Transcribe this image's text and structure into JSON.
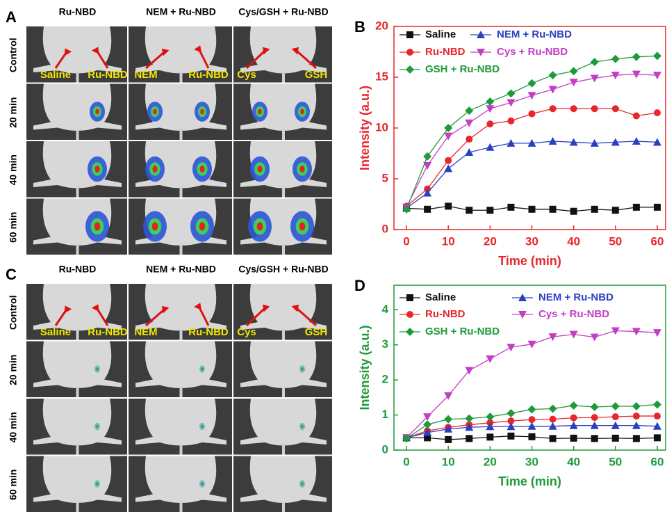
{
  "panels": [
    {
      "panel_label": "A",
      "columns": [
        "Ru-NBD",
        "NEM + Ru-NBD",
        "Cys/GSH + Ru-NBD"
      ],
      "rows": [
        "Control",
        "20 min",
        "40 min",
        "60 min"
      ],
      "annotations": [
        "Saline",
        "Ru-NBD",
        "NEM",
        "Ru-NBD",
        "Cys",
        "GSH"
      ]
    },
    {
      "panel_label": "C",
      "columns": [
        "Ru-NBD",
        "NEM + Ru-NBD",
        "Cys/GSH + Ru-NBD"
      ],
      "rows": [
        "Control",
        "20 min",
        "40 min",
        "60 min"
      ],
      "annotations": [
        "Saline",
        "Ru-NBD",
        "NEM",
        "Ru-NBD",
        "Cys",
        "GSH"
      ]
    }
  ],
  "chart_data": [
    {
      "type": "line",
      "panel_label": "B",
      "x_label": "Time (min)",
      "y_label": "Intensity (a.u.)",
      "axis_color": "#e8262b",
      "x": [
        0,
        5,
        10,
        15,
        20,
        25,
        30,
        35,
        40,
        45,
        50,
        55,
        60
      ],
      "xlim": [
        -3,
        62
      ],
      "xticks": [
        0,
        10,
        20,
        30,
        40,
        50,
        60
      ],
      "ylim": [
        0,
        20
      ],
      "yticks": [
        0,
        5,
        10,
        15,
        20
      ],
      "series": [
        {
          "name": "Saline",
          "color": "#111111",
          "marker": "square",
          "values": [
            2.1,
            2.0,
            2.3,
            1.9,
            1.9,
            2.2,
            2.0,
            2.0,
            1.8,
            2.0,
            1.9,
            2.2,
            2.2
          ]
        },
        {
          "name": "Ru-NBD",
          "color": "#e8262b",
          "marker": "circle",
          "values": [
            2.3,
            4.0,
            6.8,
            8.9,
            10.4,
            10.7,
            11.4,
            11.9,
            11.9,
            11.9,
            11.9,
            11.2,
            11.5
          ]
        },
        {
          "name": "NEM + Ru-NBD",
          "color": "#2b3fbf",
          "marker": "triangle",
          "values": [
            2.1,
            3.6,
            6.0,
            7.6,
            8.1,
            8.5,
            8.5,
            8.7,
            8.6,
            8.5,
            8.6,
            8.7,
            8.6
          ]
        },
        {
          "name": "Cys + Ru-NBD",
          "color": "#c23fc2",
          "marker": "triangle-down",
          "values": [
            2.2,
            6.3,
            9.2,
            10.5,
            11.9,
            12.5,
            13.2,
            13.8,
            14.5,
            14.9,
            15.2,
            15.3,
            15.2
          ]
        },
        {
          "name": "GSH + Ru-NBD",
          "color": "#1f9a3a",
          "marker": "diamond",
          "values": [
            2.0,
            7.2,
            10.0,
            11.7,
            12.6,
            13.4,
            14.4,
            15.2,
            15.6,
            16.5,
            16.8,
            17.0,
            17.1
          ]
        }
      ]
    },
    {
      "type": "line",
      "panel_label": "D",
      "x_label": "Time (min)",
      "y_label": "Intensity (a.u.)",
      "axis_color": "#1f9a3a",
      "x": [
        0,
        5,
        10,
        15,
        20,
        25,
        30,
        35,
        40,
        45,
        50,
        55,
        60
      ],
      "xlim": [
        -3,
        62
      ],
      "xticks": [
        0,
        10,
        20,
        30,
        40,
        50,
        60
      ],
      "ylim": [
        0,
        4.7
      ],
      "yticks": [
        0,
        1,
        2,
        3,
        4
      ],
      "series": [
        {
          "name": "Saline",
          "color": "#111111",
          "marker": "square",
          "values": [
            0.35,
            0.35,
            0.3,
            0.33,
            0.37,
            0.4,
            0.38,
            0.33,
            0.34,
            0.33,
            0.34,
            0.33,
            0.35
          ]
        },
        {
          "name": "Ru-NBD",
          "color": "#e8262b",
          "marker": "circle",
          "values": [
            0.35,
            0.55,
            0.65,
            0.72,
            0.78,
            0.83,
            0.87,
            0.88,
            0.92,
            0.93,
            0.95,
            0.97,
            0.97
          ]
        },
        {
          "name": "NEM + Ru-NBD",
          "color": "#2b3fbf",
          "marker": "triangle",
          "values": [
            0.35,
            0.5,
            0.6,
            0.65,
            0.67,
            0.67,
            0.68,
            0.68,
            0.7,
            0.7,
            0.7,
            0.7,
            0.68
          ]
        },
        {
          "name": "Cys + Ru-NBD",
          "color": "#c23fc2",
          "marker": "triangle-down",
          "values": [
            0.35,
            0.95,
            1.55,
            2.27,
            2.6,
            2.93,
            3.02,
            3.23,
            3.3,
            3.22,
            3.4,
            3.38,
            3.35
          ]
        },
        {
          "name": "GSH + Ru-NBD",
          "color": "#1f9a3a",
          "marker": "diamond",
          "values": [
            0.33,
            0.73,
            0.88,
            0.9,
            0.95,
            1.05,
            1.16,
            1.18,
            1.27,
            1.23,
            1.25,
            1.25,
            1.3
          ]
        }
      ]
    }
  ]
}
